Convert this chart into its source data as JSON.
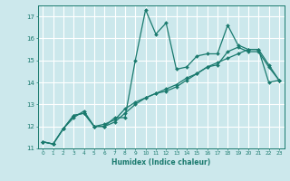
{
  "xlabel": "Humidex (Indice chaleur)",
  "bg_color": "#cce8ec",
  "grid_color": "#ffffff",
  "line_color": "#1a7a6e",
  "xlim": [
    -0.5,
    23.5
  ],
  "ylim": [
    11,
    17.5
  ],
  "xticks": [
    0,
    1,
    2,
    3,
    4,
    5,
    6,
    7,
    8,
    9,
    10,
    11,
    12,
    13,
    14,
    15,
    16,
    17,
    18,
    19,
    20,
    21,
    22,
    23
  ],
  "yticks": [
    11,
    12,
    13,
    14,
    15,
    16,
    17
  ],
  "line1_x": [
    0,
    1,
    2,
    3,
    4,
    5,
    6,
    7,
    8,
    9,
    10,
    11,
    12,
    13,
    14,
    15,
    16,
    17,
    18,
    19,
    20,
    21,
    22,
    23
  ],
  "line1_y": [
    11.3,
    11.2,
    11.9,
    12.5,
    12.6,
    12.0,
    12.0,
    12.4,
    12.4,
    15.0,
    17.3,
    16.2,
    16.7,
    14.6,
    14.7,
    15.2,
    15.3,
    15.3,
    16.6,
    15.7,
    15.5,
    15.5,
    14.8,
    14.1
  ],
  "line2_x": [
    0,
    1,
    2,
    3,
    4,
    5,
    6,
    7,
    8,
    9,
    10,
    11,
    12,
    13,
    14,
    15,
    16,
    17,
    18,
    19,
    20,
    21,
    22,
    23
  ],
  "line2_y": [
    11.3,
    11.2,
    11.9,
    12.5,
    12.6,
    12.0,
    12.1,
    12.3,
    12.8,
    13.1,
    13.3,
    13.5,
    13.7,
    13.9,
    14.2,
    14.4,
    14.7,
    14.9,
    15.1,
    15.3,
    15.5,
    15.5,
    14.0,
    14.1
  ],
  "line3_x": [
    0,
    1,
    2,
    3,
    4,
    5,
    6,
    7,
    8,
    9,
    10,
    11,
    12,
    13,
    14,
    15,
    16,
    17,
    18,
    19,
    20,
    21,
    22,
    23
  ],
  "line3_y": [
    11.3,
    11.2,
    11.9,
    12.4,
    12.7,
    12.0,
    12.0,
    12.2,
    12.6,
    13.0,
    13.3,
    13.5,
    13.6,
    13.8,
    14.1,
    14.4,
    14.7,
    14.8,
    15.4,
    15.6,
    15.4,
    15.4,
    14.7,
    14.1
  ]
}
